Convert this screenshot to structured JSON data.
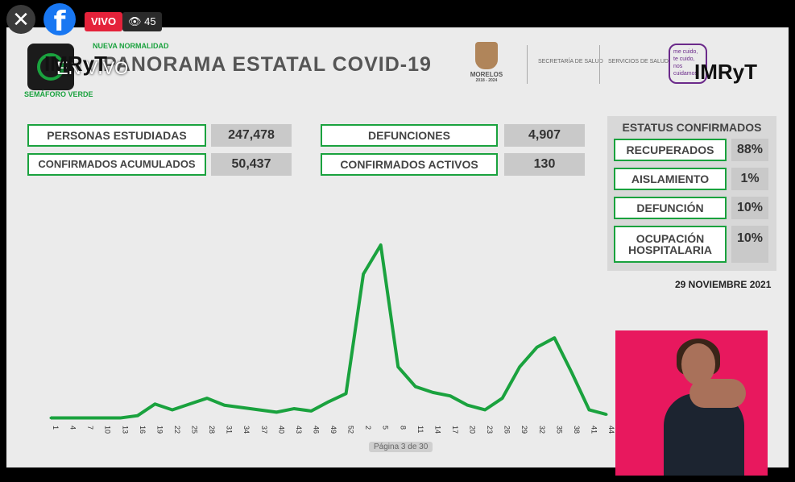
{
  "player": {
    "close_icon": "close-icon",
    "facebook_icon": "facebook-icon",
    "live_label": "VIVO",
    "viewers": "45",
    "eye_icon": "eye-icon"
  },
  "overlay": {
    "en_vivo": "EN VIVO"
  },
  "header": {
    "nueva_normalidad": "NUEVA NORMALIDAD",
    "semaforo_verde": "SEMÁFORO VERDE",
    "title": "PANORAMA ESTATAL COVID-19",
    "imryt": "IMRyT",
    "morelos": "MORELOS",
    "morelos_years": "2018 - 2024",
    "secretaria": "SECRETARÍA DE SALUD",
    "servicios": "SERVICIOS DE SALUD",
    "me_cuido": "me cuido, te cuido, nos cuidamos",
    "imryt_right": "IMRyT"
  },
  "stats": {
    "personas_label": "PERSONAS ESTUDIADAS",
    "personas_value": "247,478",
    "confirmados_label": "CONFIRMADOS ACUMULADOS",
    "confirmados_value": "50,437",
    "defunciones_label": "DEFUNCIONES",
    "defunciones_value": "4,907",
    "activos_label": "CONFIRMADOS ACTIVOS",
    "activos_value": "130"
  },
  "status": {
    "title": "ESTATUS CONFIRMADOS",
    "items": [
      {
        "label": "RECUPERADOS",
        "value": "88%"
      },
      {
        "label": "AISLAMIENTO",
        "value": "1%"
      },
      {
        "label": "DEFUNCIÓN",
        "value": "10%"
      },
      {
        "label": "OCUPACIÓN HOSPITALARIA",
        "value": "10%"
      }
    ]
  },
  "date": "29 NOVIEMBRE 2021",
  "page_indicator": "Página 3 de 30",
  "chart_data": {
    "type": "line",
    "color": "#1aa23e",
    "x": [
      "1",
      "4",
      "7",
      "10",
      "13",
      "16",
      "19",
      "22",
      "25",
      "28",
      "31",
      "34",
      "37",
      "40",
      "43",
      "46",
      "49",
      "52",
      "2",
      "5",
      "8",
      "11",
      "14",
      "17",
      "20",
      "23",
      "26",
      "29",
      "32",
      "35",
      "38",
      "41",
      "44"
    ],
    "values": [
      1,
      1,
      1,
      1,
      1,
      3,
      13,
      8,
      13,
      18,
      12,
      10,
      8,
      6,
      9,
      7,
      15,
      22,
      125,
      150,
      45,
      28,
      23,
      20,
      12,
      8,
      18,
      45,
      62,
      70,
      40,
      8,
      4
    ]
  }
}
